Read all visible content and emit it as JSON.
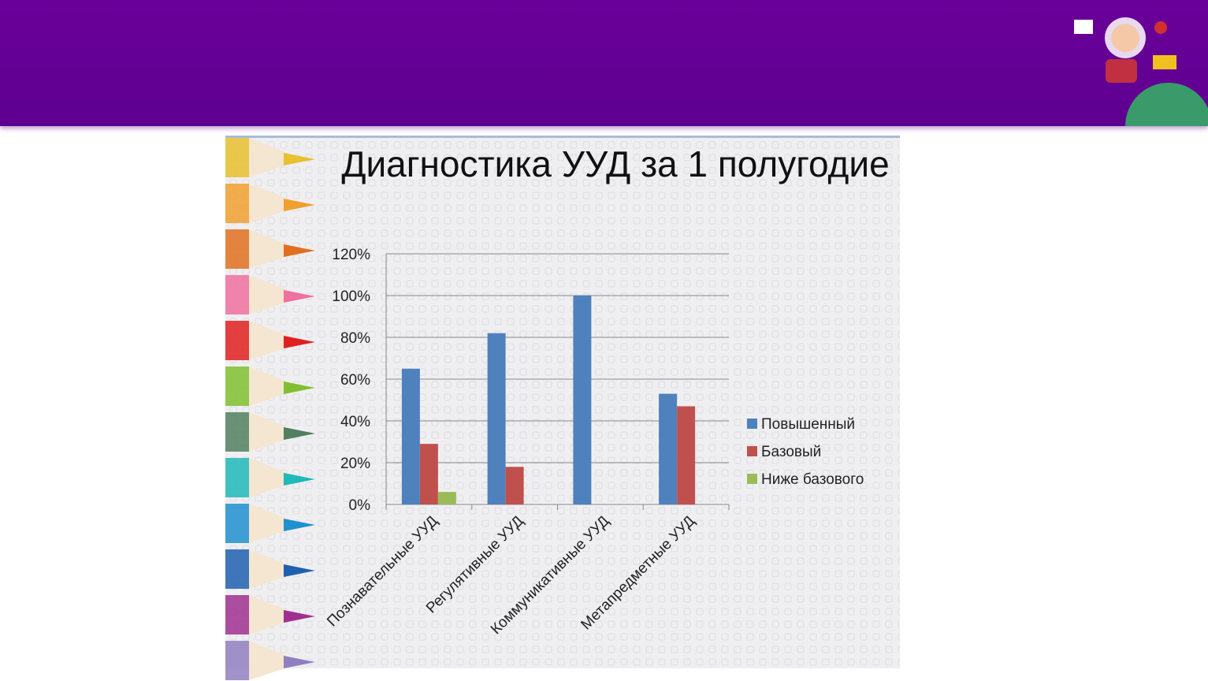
{
  "chart_data": {
    "type": "bar",
    "title": "Диагностика УУД за 1 полугодие",
    "categories": [
      "Познавательные УУД",
      "Регулятивные УУД",
      "Коммуникативные УУД",
      "Метапредметные УУД"
    ],
    "series": [
      {
        "name": "Повышенный",
        "color": "#4f81bd",
        "values": [
          65,
          82,
          100,
          53
        ]
      },
      {
        "name": "Базовый",
        "color": "#c0504d",
        "values": [
          29,
          18,
          0,
          47
        ]
      },
      {
        "name": "Ниже базового",
        "color": "#9bbb59",
        "values": [
          6,
          0,
          0,
          0
        ]
      }
    ],
    "ylim": [
      0,
      120
    ],
    "yticks": [
      {
        "value": 0,
        "label": "0%"
      },
      {
        "value": 20,
        "label": "20%"
      },
      {
        "value": 40,
        "label": "40%"
      },
      {
        "value": 60,
        "label": "60%"
      },
      {
        "value": 80,
        "label": "80%"
      },
      {
        "value": 100,
        "label": "100%"
      },
      {
        "value": 120,
        "label": "120%"
      }
    ],
    "grid": true,
    "legend": "right"
  }
}
